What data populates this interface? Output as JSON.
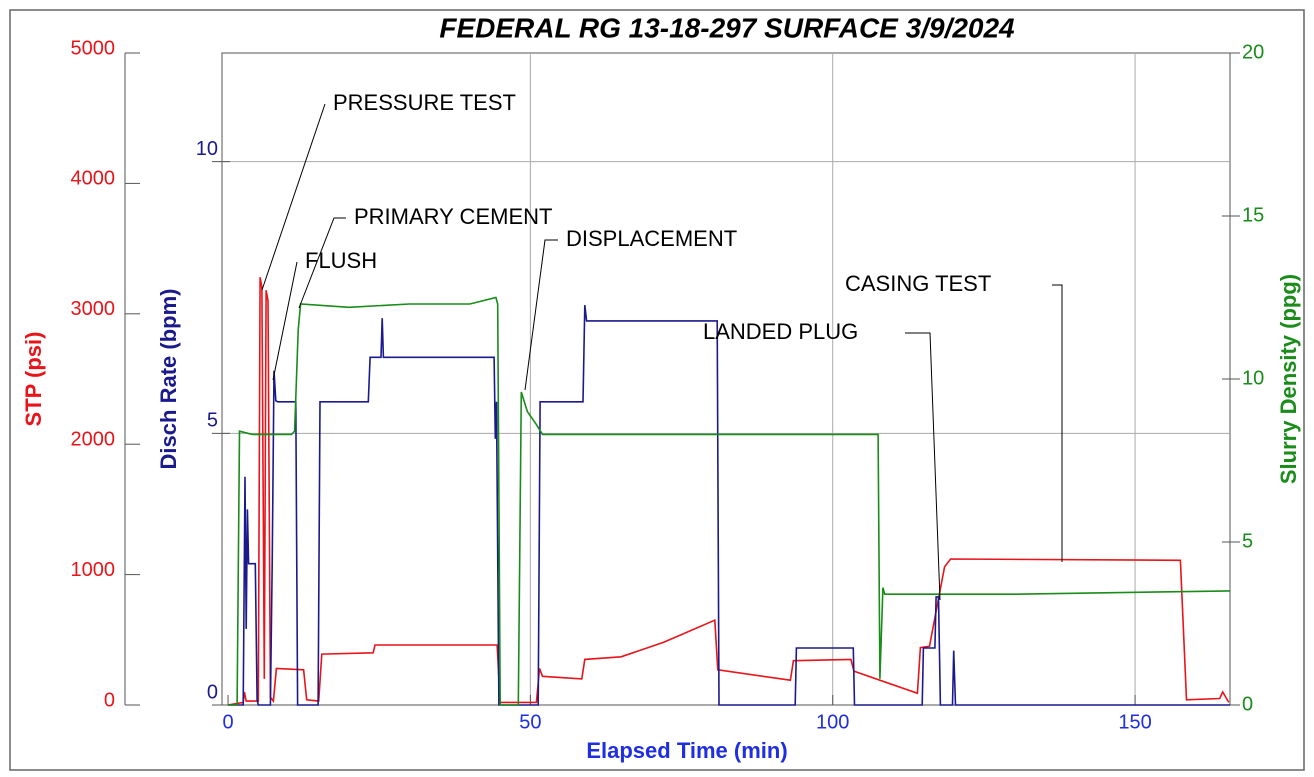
{
  "chart_data": {
    "type": "line",
    "title": "FEDERAL RG 13-18-297  SURFACE  3/9/2024",
    "x_label": "Elapsed Time (min)",
    "xlim": [
      -1,
      165.7
    ],
    "xticks": [
      0,
      50,
      100,
      150
    ],
    "ylim": [
      0,
      12
    ],
    "yticks": [
      0,
      5,
      10
    ],
    "y_label": "Disch Rate (bpm)",
    "y_stp_lim": [
      0,
      5000
    ],
    "y_stp_ticks": [
      0,
      1000,
      2000,
      3000,
      4000,
      5000
    ],
    "y_stp_label": "STP (psi)",
    "y2lim": [
      0,
      20
    ],
    "y2ticks": [
      0,
      5,
      10,
      15,
      20
    ],
    "y2_label": "Slurry Density (ppg)",
    "grid": true,
    "series": [
      {
        "name": "STP (psi)",
        "color": "#e8141a",
        "axis": "stp",
        "x": [
          0,
          2.5,
          2.7,
          3,
          5.0,
          5.3,
          5.6,
          6.0,
          6.3,
          6.6,
          7.0,
          7.5,
          8.0,
          12.5,
          13.0,
          15.0,
          15.5,
          24.0,
          24.3,
          44.5,
          45.0,
          51.0,
          51.5,
          52.0,
          58.5,
          59.0,
          65,
          72,
          80.5,
          81.0,
          93.0,
          93.5,
          103.0,
          103.5,
          114.0,
          114.5,
          116.0,
          118.0,
          118.5,
          119.5,
          157.5,
          158.5,
          164.0,
          164.5,
          165.5
        ],
        "values": [
          0,
          20,
          100,
          30,
          30,
          3280,
          3200,
          200,
          3180,
          3100,
          60,
          30,
          280,
          270,
          40,
          30,
          390,
          400,
          460,
          460,
          20,
          20,
          280,
          220,
          200,
          350,
          370,
          480,
          650,
          270,
          190,
          340,
          350,
          260,
          90,
          440,
          450,
          940,
          1060,
          1120,
          1110,
          40,
          50,
          100,
          20
        ]
      },
      {
        "name": "Disch Rate (bpm)",
        "color": "#1a1a8c",
        "axis": "y",
        "x": [
          0,
          2.5,
          2.8,
          3.0,
          3.2,
          3.4,
          4.5,
          4.8,
          5.0,
          7.0,
          7.3,
          7.6,
          7.9,
          8.2,
          11.2,
          11.5,
          14.9,
          15.2,
          23.2,
          23.5,
          25.3,
          25.5,
          25.7,
          44.0,
          44.2,
          44.4,
          44.8,
          51.3,
          51.6,
          58.7,
          59.0,
          59.3,
          80.9,
          81.2,
          93.8,
          94.0,
          103.4,
          103.6,
          114.8,
          115.0,
          116.9,
          117.1,
          117.5,
          117.8,
          119.8,
          120.0,
          120.3,
          165.7
        ],
        "values": [
          0,
          0,
          4.2,
          1.4,
          3.6,
          2.6,
          2.6,
          0.1,
          0,
          0,
          2.6,
          6.15,
          5.6,
          5.58,
          5.58,
          0,
          0,
          5.58,
          5.58,
          6.4,
          6.4,
          7.12,
          6.4,
          6.4,
          4.9,
          5.58,
          0,
          0,
          5.58,
          5.58,
          7.36,
          7.07,
          7.07,
          0,
          0,
          1.05,
          1.05,
          0,
          0,
          1.05,
          1.05,
          1.99,
          1.99,
          0,
          0,
          1.0,
          0,
          0
        ]
      },
      {
        "name": "Slurry Density (ppg)",
        "color": "#1a8c1a",
        "axis": "y2",
        "x": [
          0,
          1.5,
          1.9,
          4,
          10.5,
          11.0,
          11.6,
          12.0,
          20,
          30,
          40,
          44.3,
          44.6,
          45.0,
          48.0,
          48.5,
          49.5,
          51.0,
          52.0,
          60,
          80,
          107.5,
          107.8,
          108.3,
          108.6,
          130,
          165.7
        ],
        "values": [
          0,
          0,
          8.4,
          8.3,
          8.3,
          8.4,
          11.5,
          12.3,
          12.2,
          12.3,
          12.3,
          12.5,
          12.3,
          0,
          0,
          9.6,
          9.0,
          8.6,
          8.3,
          8.3,
          8.3,
          8.3,
          0.8,
          3.6,
          3.4,
          3.4,
          3.5
        ]
      }
    ],
    "annotations": [
      "PRESSURE TEST",
      "PRIMARY CEMENT",
      "FLUSH",
      "DISPLACEMENT",
      "CASING TEST",
      "LANDED PLUG"
    ]
  }
}
